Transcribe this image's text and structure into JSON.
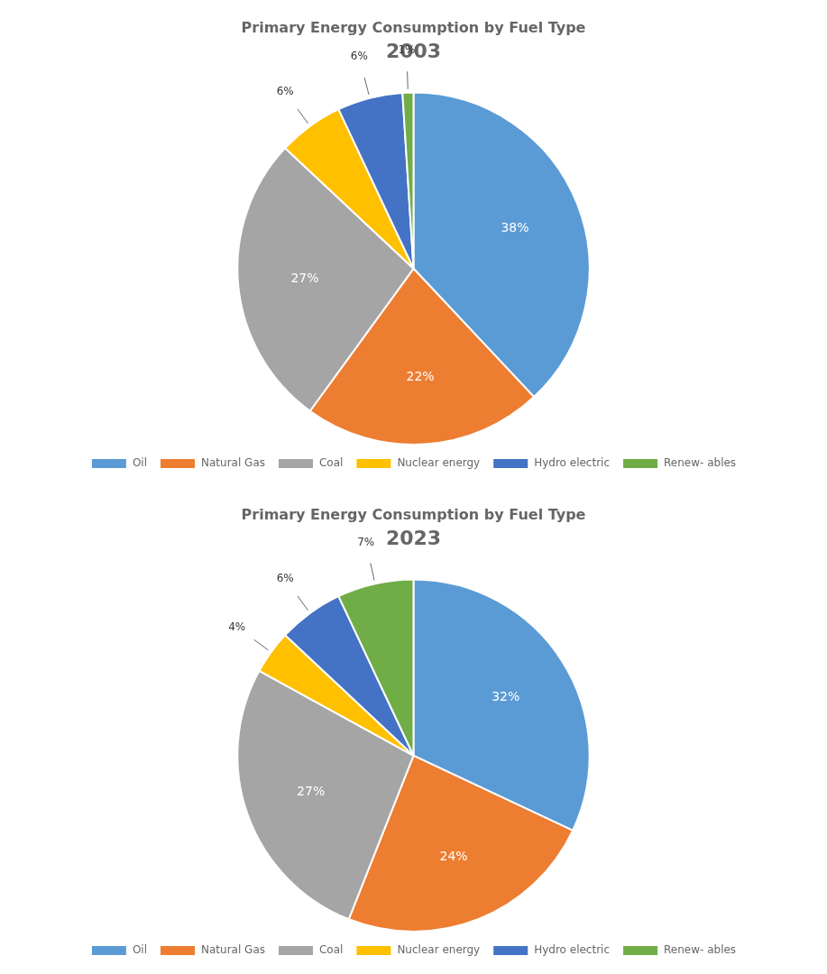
{
  "chart_data": [
    {
      "type": "pie",
      "title": "Primary Energy Consumption by Fuel Type",
      "subtitle": "2003",
      "categories": [
        "Oil",
        "Natural Gas",
        "Coal",
        "Nuclear energy",
        "Hydro electric",
        "Renew- ables"
      ],
      "values": [
        38,
        22,
        27,
        6,
        6,
        1
      ],
      "value_labels": [
        "38%",
        "22%",
        "27%",
        "6%",
        "6%",
        "1%"
      ],
      "colors": [
        "#5B9BD5",
        "#ED7D31",
        "#A5A5A5",
        "#FFC000",
        "#4472C4",
        "#70AD47"
      ],
      "data_labels": true,
      "legend": "bottom"
    },
    {
      "type": "pie",
      "title": "Primary Energy Consumption by Fuel Type",
      "subtitle": "2023",
      "categories": [
        "Oil",
        "Natural Gas",
        "Coal",
        "Nuclear energy",
        "Hydro electric",
        "Renew- ables"
      ],
      "values": [
        32,
        24,
        27,
        4,
        6,
        7
      ],
      "value_labels": [
        "32%",
        "24%",
        "27%",
        "4%",
        "6%",
        "7%"
      ],
      "colors": [
        "#5B9BD5",
        "#ED7D31",
        "#A5A5A5",
        "#FFC000",
        "#4472C4",
        "#70AD47"
      ],
      "data_labels": true,
      "legend": "bottom"
    }
  ]
}
